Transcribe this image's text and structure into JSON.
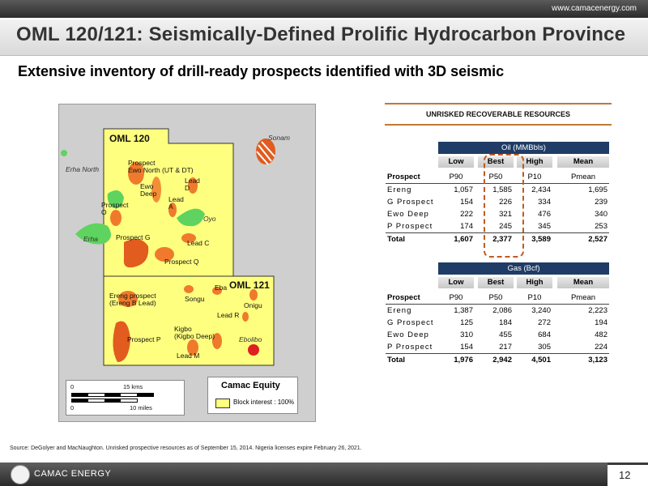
{
  "header": {
    "url": "www.camacenergy.com"
  },
  "title": "OML 120/121: Seismically-Defined Prolific Hydrocarbon Province",
  "subtitle": "Extensive inventory of drill-ready prospects identified with 3D seismic",
  "map": {
    "blocks": [
      "OML 120",
      "OML 121"
    ],
    "labels": [
      "Prospect\nEwo North (UT & DT)",
      "Ewo\nDeep",
      "Lead\nD",
      "Lead\nA",
      "Prospect\nO",
      "Prospect G",
      "Lead C",
      "Prospect Q",
      "Ereng prospect\n(Ereng B Lead)",
      "Songu",
      "Eba",
      "Onigu",
      "Lead R",
      "Kigbo\n(Kigbo Deep)",
      "Prospect P",
      "Lead M"
    ],
    "fields": [
      "Erha North",
      "Erha",
      "Oyo",
      "Sonam",
      "Ebolibo"
    ],
    "scale": {
      "km": "15 kms",
      "miles": "10 miles",
      "zero1": "0",
      "zero2": "0"
    },
    "legend": {
      "title": "Camac Equity",
      "item": "Block interest : 100%"
    },
    "colors": {
      "block": "#ffff7f",
      "prospect": "#f07a2c",
      "field_green": "#5fd35f",
      "sea": "#cfcfcf"
    }
  },
  "resources": {
    "heading": "UNRISKED RECOVERABLE RESOURCES",
    "oil": {
      "band": "Oil (MMBbls)",
      "cols": [
        "Low",
        "Best",
        "High",
        "Mean"
      ],
      "subcols": [
        "Prospect",
        "P90",
        "P50",
        "P10",
        "Pmean"
      ],
      "rows": [
        [
          "Ereng",
          "1,057",
          "1,585",
          "2,434",
          "1,695"
        ],
        [
          "G Prospect",
          "154",
          "226",
          "334",
          "239"
        ],
        [
          "Ewo Deep",
          "222",
          "321",
          "476",
          "340"
        ],
        [
          "P Prospect",
          "174",
          "245",
          "345",
          "253"
        ]
      ],
      "total": [
        "Total",
        "1,607",
        "2,377",
        "3,589",
        "2,527"
      ]
    },
    "gas": {
      "band": "Gas (Bcf)",
      "cols": [
        "Low",
        "Best",
        "High",
        "Mean"
      ],
      "subcols": [
        "Prospect",
        "P90",
        "P50",
        "P10",
        "Pmean"
      ],
      "rows": [
        [
          "Ereng",
          "1,387",
          "2,086",
          "3,240",
          "2,223"
        ],
        [
          "G Prospect",
          "125",
          "184",
          "272",
          "194"
        ],
        [
          "Ewo Deep",
          "310",
          "455",
          "684",
          "482"
        ],
        [
          "P Prospect",
          "154",
          "217",
          "305",
          "224"
        ]
      ],
      "total": [
        "Total",
        "1,976",
        "2,942",
        "4,501",
        "3,123"
      ]
    }
  },
  "source": "Source: DeGolyer and MacNaughton.  Unrisked prospective resources as of September 15, 2014.  Nigeria licenses expire February 26, 2021.",
  "footer": {
    "company": "CAMAC ENERGY",
    "page": "12"
  }
}
